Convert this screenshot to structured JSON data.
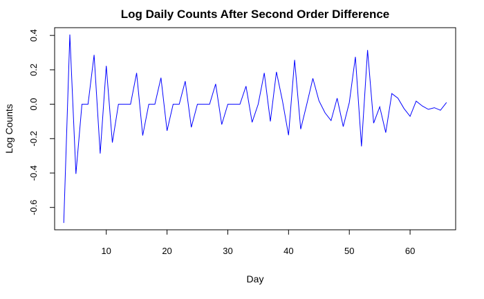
{
  "chart_data": {
    "type": "line",
    "title": "Log Daily Counts After Second Order Difference",
    "xlabel": "Day",
    "ylabel": "Log Counts",
    "xlim": [
      1.5,
      67.5
    ],
    "ylim": [
      -0.73,
      0.445
    ],
    "xticks": [
      10,
      20,
      30,
      40,
      50,
      60
    ],
    "yticks": [
      -0.6,
      -0.4,
      -0.2,
      0.0,
      0.2,
      0.4
    ],
    "ytick_labels": [
      "-0.6",
      "-0.4",
      "-0.2",
      "0.0",
      "0.2",
      "0.4"
    ],
    "grid": false,
    "series_color": "#0000ff",
    "series": [
      {
        "x": [
          3,
          4,
          5,
          6,
          7,
          8,
          9,
          10,
          11,
          12,
          13,
          14,
          15,
          16,
          17,
          18,
          19,
          20,
          21,
          22,
          23,
          24,
          25,
          26,
          27,
          28,
          29,
          30,
          31,
          32,
          33,
          34,
          35,
          36,
          37,
          38,
          39,
          40,
          41,
          42,
          43,
          44,
          45,
          46,
          47,
          48,
          49,
          50,
          51,
          52,
          53,
          54,
          55,
          56,
          57,
          58,
          59,
          60,
          61,
          62,
          63,
          64,
          65,
          66
        ],
        "values": [
          -0.69,
          0.405,
          -0.405,
          0.0,
          0.0,
          0.287,
          -0.287,
          0.223,
          -0.223,
          0.0,
          0.0,
          0.0,
          0.182,
          -0.182,
          0.0,
          0.0,
          0.154,
          -0.154,
          0.0,
          0.0,
          0.134,
          -0.134,
          0.0,
          0.0,
          0.0,
          0.118,
          -0.118,
          0.0,
          0.0,
          0.0,
          0.105,
          -0.105,
          0.0,
          0.182,
          -0.1,
          0.188,
          0.02,
          -0.18,
          0.258,
          -0.145,
          0.0,
          0.15,
          0.02,
          -0.05,
          -0.095,
          0.035,
          -0.13,
          0.01,
          0.275,
          -0.245,
          0.315,
          -0.11,
          -0.015,
          -0.165,
          0.062,
          0.035,
          -0.025,
          -0.07,
          0.018,
          -0.01,
          -0.03,
          -0.02,
          -0.035,
          0.01
        ]
      }
    ]
  }
}
